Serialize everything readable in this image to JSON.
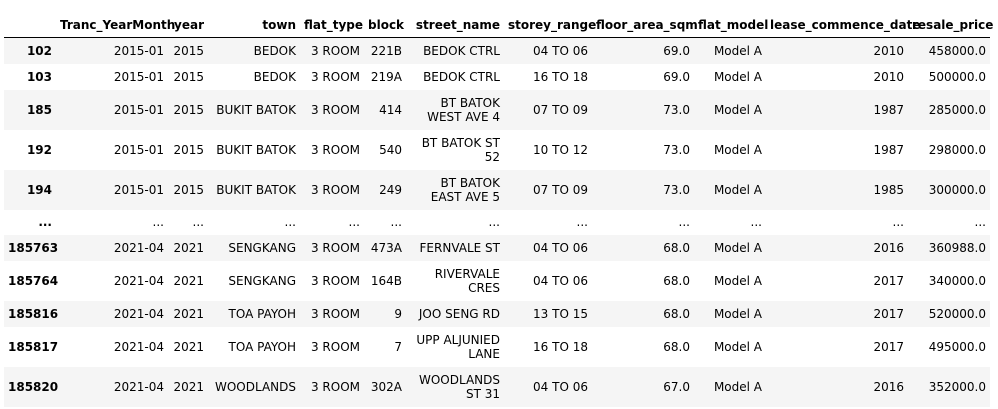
{
  "table": {
    "columns": [
      "",
      "Tranc_YearMonth",
      "year",
      "town",
      "flat_type",
      "block",
      "street_name",
      "storey_range",
      "floor_area_sqm",
      "flat_model",
      "lease_commence_date",
      "resale_price"
    ],
    "rows": [
      {
        "idx": "102",
        "ym": "2015-01",
        "year": "2015",
        "town": "BEDOK",
        "flat_type": "3 ROOM",
        "block": "221B",
        "street": "BEDOK CTRL",
        "storey": "04 TO 06",
        "area": "69.0",
        "model": "Model A",
        "lease": "2010",
        "price": "458000.0"
      },
      {
        "idx": "103",
        "ym": "2015-01",
        "year": "2015",
        "town": "BEDOK",
        "flat_type": "3 ROOM",
        "block": "219A",
        "street": "BEDOK CTRL",
        "storey": "16 TO 18",
        "area": "69.0",
        "model": "Model A",
        "lease": "2010",
        "price": "500000.0"
      },
      {
        "idx": "185",
        "ym": "2015-01",
        "year": "2015",
        "town": "BUKIT BATOK",
        "flat_type": "3 ROOM",
        "block": "414",
        "street": "BT BATOK WEST AVE 4",
        "storey": "07 TO 09",
        "area": "73.0",
        "model": "Model A",
        "lease": "1987",
        "price": "285000.0"
      },
      {
        "idx": "192",
        "ym": "2015-01",
        "year": "2015",
        "town": "BUKIT BATOK",
        "flat_type": "3 ROOM",
        "block": "540",
        "street": "BT BATOK ST 52",
        "storey": "10 TO 12",
        "area": "73.0",
        "model": "Model A",
        "lease": "1987",
        "price": "298000.0"
      },
      {
        "idx": "194",
        "ym": "2015-01",
        "year": "2015",
        "town": "BUKIT BATOK",
        "flat_type": "3 ROOM",
        "block": "249",
        "street": "BT BATOK EAST AVE 5",
        "storey": "07 TO 09",
        "area": "73.0",
        "model": "Model A",
        "lease": "1985",
        "price": "300000.0"
      },
      {
        "idx": "...",
        "ym": "...",
        "year": "...",
        "town": "...",
        "flat_type": "...",
        "block": "...",
        "street": "...",
        "storey": "...",
        "area": "...",
        "model": "...",
        "lease": "...",
        "price": "..."
      },
      {
        "idx": "185763",
        "ym": "2021-04",
        "year": "2021",
        "town": "SENGKANG",
        "flat_type": "3 ROOM",
        "block": "473A",
        "street": "FERNVALE ST",
        "storey": "04 TO 06",
        "area": "68.0",
        "model": "Model A",
        "lease": "2016",
        "price": "360988.0"
      },
      {
        "idx": "185764",
        "ym": "2021-04",
        "year": "2021",
        "town": "SENGKANG",
        "flat_type": "3 ROOM",
        "block": "164B",
        "street": "RIVERVALE CRES",
        "storey": "04 TO 06",
        "area": "68.0",
        "model": "Model A",
        "lease": "2017",
        "price": "340000.0"
      },
      {
        "idx": "185816",
        "ym": "2021-04",
        "year": "2021",
        "town": "TOA PAYOH",
        "flat_type": "3 ROOM",
        "block": "9",
        "street": "JOO SENG RD",
        "storey": "13 TO 15",
        "area": "68.0",
        "model": "Model A",
        "lease": "2017",
        "price": "520000.0"
      },
      {
        "idx": "185817",
        "ym": "2021-04",
        "year": "2021",
        "town": "TOA PAYOH",
        "flat_type": "3 ROOM",
        "block": "7",
        "street": "UPP ALJUNIED LANE",
        "storey": "16 TO 18",
        "area": "68.0",
        "model": "Model A",
        "lease": "2017",
        "price": "495000.0"
      },
      {
        "idx": "185820",
        "ym": "2021-04",
        "year": "2021",
        "town": "WOODLANDS",
        "flat_type": "3 ROOM",
        "block": "302A",
        "street": "WOODLANDS ST 31",
        "storey": "04 TO 06",
        "area": "67.0",
        "model": "Model A",
        "lease": "2016",
        "price": "352000.0"
      }
    ]
  }
}
